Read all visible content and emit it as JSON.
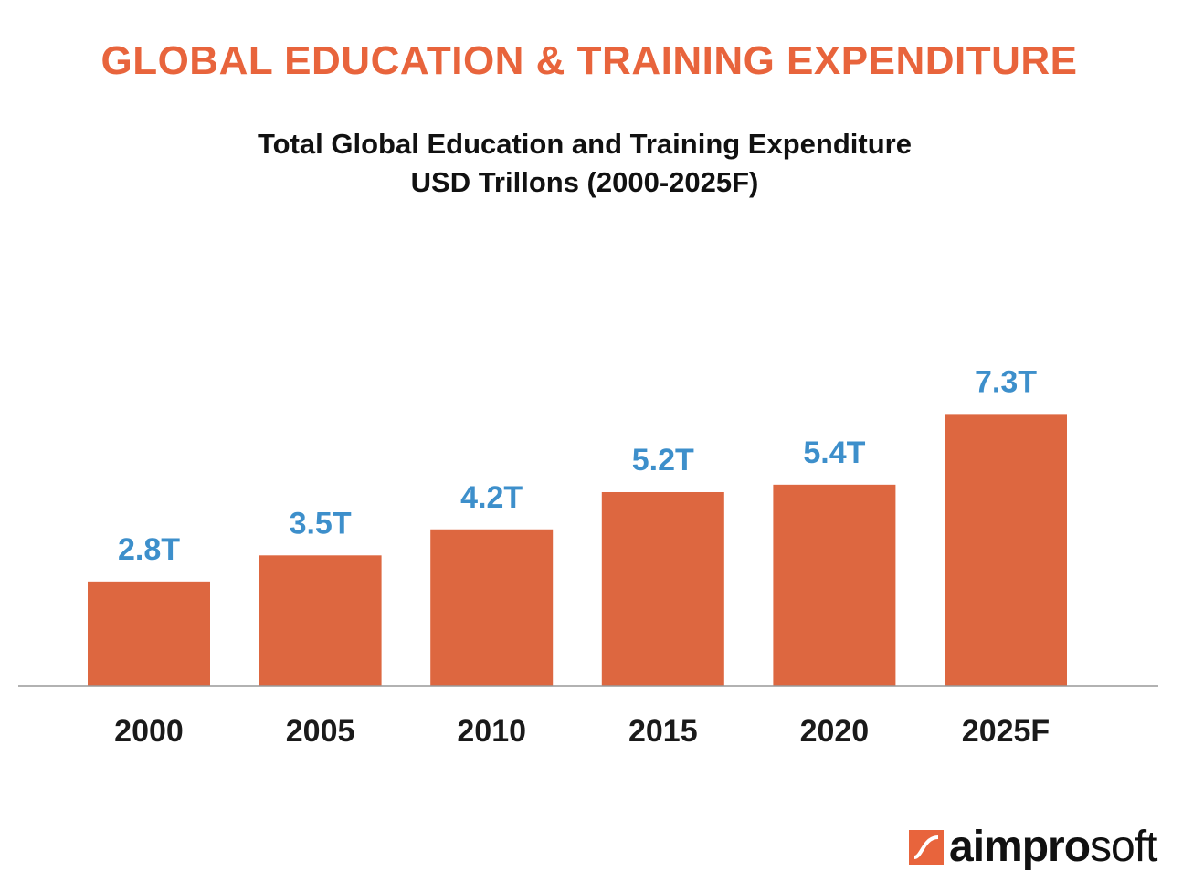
{
  "header": {
    "headline": "GLOBAL EDUCATION & TRAINING EXPENDITURE",
    "subtitle_line1": "Total Global Education and Training Expenditure",
    "subtitle_line2": "USD Trillons (2000-2025F)"
  },
  "colors": {
    "headline": "#E8643C",
    "bar": "#DD6740",
    "value_label": "#3D8FCB",
    "tick_label": "#1a1a1a",
    "axis": "#999999"
  },
  "chart_data": {
    "type": "bar",
    "title": "Total Global Education and Training Expenditure",
    "subtitle": "USD Trillons (2000-2025F)",
    "categories": [
      "2000",
      "2005",
      "2010",
      "2015",
      "2020",
      "2025F"
    ],
    "values": [
      2.8,
      3.5,
      4.2,
      5.2,
      5.4,
      7.3
    ],
    "value_labels": [
      "2.8T",
      "3.5T",
      "4.2T",
      "5.2T",
      "5.4T",
      "7.3T"
    ],
    "ylim": [
      0,
      8
    ],
    "grid": false,
    "legend": "none"
  },
  "logo": {
    "brand": "aimpro",
    "brand_suffix": "soft",
    "icon": "aimprosoft-logo-icon"
  }
}
